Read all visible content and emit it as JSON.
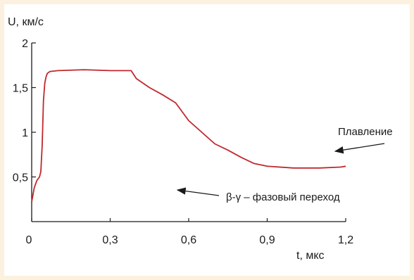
{
  "chart_data": {
    "type": "line",
    "ylabel": "U, км/с",
    "xlabel": "t, мкс",
    "xlim": [
      0,
      1.2
    ],
    "ylim": [
      0,
      2
    ],
    "x_ticks": [
      {
        "value": 0,
        "label": "0"
      },
      {
        "value": 0.3,
        "label": "0,3"
      },
      {
        "value": 0.6,
        "label": "0,6"
      },
      {
        "value": 0.9,
        "label": "0,9"
      },
      {
        "value": 1.2,
        "label": "1,2"
      }
    ],
    "y_ticks": [
      {
        "value": 0.5,
        "label": "0,5"
      },
      {
        "value": 1,
        "label": "1"
      },
      {
        "value": 1.5,
        "label": "1,5"
      },
      {
        "value": 2,
        "label": "2"
      }
    ],
    "series": [
      {
        "color": "#c0282d",
        "points": [
          [
            0.0,
            0.22
          ],
          [
            0.01,
            0.38
          ],
          [
            0.02,
            0.46
          ],
          [
            0.025,
            0.48
          ],
          [
            0.03,
            0.5
          ],
          [
            0.035,
            0.56
          ],
          [
            0.04,
            0.85
          ],
          [
            0.045,
            1.35
          ],
          [
            0.05,
            1.55
          ],
          [
            0.055,
            1.62
          ],
          [
            0.06,
            1.66
          ],
          [
            0.07,
            1.68
          ],
          [
            0.1,
            1.69
          ],
          [
            0.2,
            1.7
          ],
          [
            0.3,
            1.69
          ],
          [
            0.38,
            1.69
          ],
          [
            0.4,
            1.6
          ],
          [
            0.45,
            1.5
          ],
          [
            0.5,
            1.42
          ],
          [
            0.55,
            1.33
          ],
          [
            0.6,
            1.13
          ],
          [
            0.65,
            1.0
          ],
          [
            0.7,
            0.87
          ],
          [
            0.75,
            0.8
          ],
          [
            0.8,
            0.72
          ],
          [
            0.85,
            0.65
          ],
          [
            0.9,
            0.62
          ],
          [
            1.0,
            0.6
          ],
          [
            1.1,
            0.6
          ],
          [
            1.18,
            0.61
          ],
          [
            1.2,
            0.62
          ]
        ]
      }
    ],
    "annotations": [
      {
        "text": "Плавление",
        "target": [
          1.2,
          0.62
        ]
      },
      {
        "text": "β-γ – фазовый переход",
        "target": [
          0.54,
          0.28
        ]
      }
    ],
    "grid": false
  }
}
